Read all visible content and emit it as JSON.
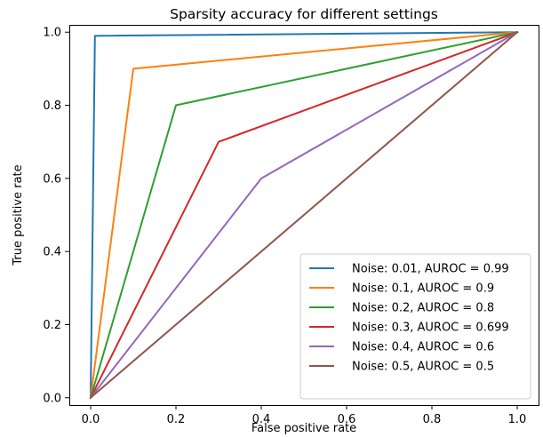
{
  "chart_data": {
    "type": "line",
    "title": "Sparsity accuracy for different settings",
    "xlabel": "False positive rate",
    "ylabel": "True positive rate",
    "xlim": [
      -0.05,
      1.05
    ],
    "ylim": [
      -0.02,
      1.02
    ],
    "xticks": [
      0.0,
      0.2,
      0.4,
      0.6,
      0.8,
      1.0
    ],
    "xtick_labels": [
      "0.0",
      "0.2",
      "0.4",
      "0.6",
      "0.8",
      "1.0"
    ],
    "yticks": [
      0.0,
      0.2,
      0.4,
      0.6,
      0.8,
      1.0
    ],
    "ytick_labels": [
      "0.0",
      "0.2",
      "0.4",
      "0.6",
      "0.8",
      "1.0"
    ],
    "grid": false,
    "legend_position": "lower-right",
    "series": [
      {
        "name": "Noise: 0.01, AUROC = 0.99",
        "color": "#1f77b4",
        "x": [
          0.0,
          0.01,
          1.0
        ],
        "y": [
          0.0,
          0.99,
          1.0
        ]
      },
      {
        "name": "Noise: 0.1, AUROC = 0.9",
        "color": "#ff7f0e",
        "x": [
          0.0,
          0.1,
          1.0
        ],
        "y": [
          0.0,
          0.9,
          1.0
        ]
      },
      {
        "name": "Noise: 0.2, AUROC = 0.8",
        "color": "#2ca02c",
        "x": [
          0.0,
          0.2,
          1.0
        ],
        "y": [
          0.0,
          0.8,
          1.0
        ]
      },
      {
        "name": "Noise: 0.3, AUROC = 0.699",
        "color": "#d62728",
        "x": [
          0.0,
          0.3,
          1.0
        ],
        "y": [
          0.0,
          0.7,
          1.0
        ]
      },
      {
        "name": "Noise: 0.4, AUROC = 0.6",
        "color": "#9467bd",
        "x": [
          0.0,
          0.4,
          1.0
        ],
        "y": [
          0.0,
          0.6,
          1.0
        ]
      },
      {
        "name": "Noise: 0.5, AUROC = 0.5",
        "color": "#8c564b",
        "x": [
          0.0,
          1.0
        ],
        "y": [
          0.0,
          1.0
        ]
      }
    ]
  }
}
